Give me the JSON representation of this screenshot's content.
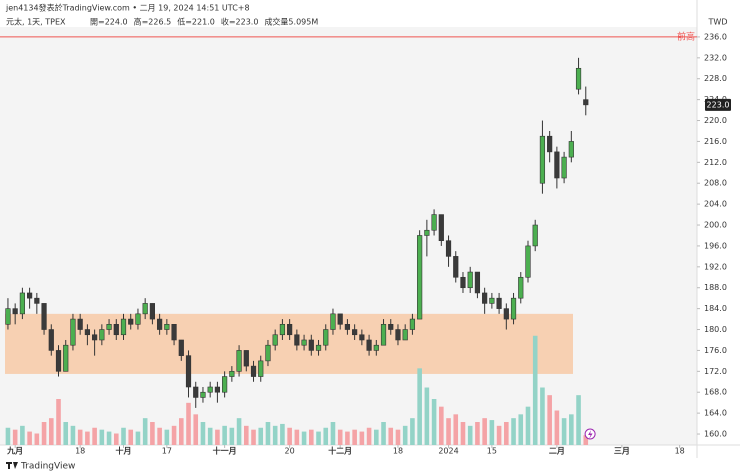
{
  "chart_data": {
    "type": "candlestick",
    "attribution": "jen4134發表於TradingView.com • 二月 19, 2024 14:51 UTC+8",
    "symbol": "元太, 1天, TPEX",
    "ohlc_labels": [
      "開=224.0",
      "高=226.5",
      "低=221.0",
      "收=223.0",
      "成交量5.095M"
    ],
    "currency": "TWD",
    "brand": "TradingView",
    "xlim": [
      -1.1,
      95.4
    ],
    "xticks": [
      {
        "value": 1,
        "label": "九月"
      },
      {
        "value": 10,
        "label": "18"
      },
      {
        "value": 16,
        "label": "十月"
      },
      {
        "value": 22,
        "label": "17"
      },
      {
        "value": 30,
        "label": "十一月"
      },
      {
        "value": 39,
        "label": "20"
      },
      {
        "value": 46,
        "label": "十二月"
      },
      {
        "value": 54,
        "label": "18"
      },
      {
        "value": 61,
        "label": "2024"
      },
      {
        "value": 67,
        "label": "15"
      },
      {
        "value": 76,
        "label": "二月"
      },
      {
        "value": 85,
        "label": "三月"
      },
      {
        "value": 93,
        "label": "18"
      }
    ],
    "ylim": [
      157.9,
      237.9
    ],
    "yticks": [
      {
        "value": 160,
        "label": "160.0"
      },
      {
        "value": 164,
        "label": "164.0"
      },
      {
        "value": 168,
        "label": "168.0"
      },
      {
        "value": 172,
        "label": "172.0"
      },
      {
        "value": 176,
        "label": "176.0"
      },
      {
        "value": 180,
        "label": "180.0"
      },
      {
        "value": 184,
        "label": "184.0"
      },
      {
        "value": 188,
        "label": "188.0"
      },
      {
        "value": 192,
        "label": "192.0"
      },
      {
        "value": 196,
        "label": "196.0"
      },
      {
        "value": 200,
        "label": "200.0"
      },
      {
        "value": 204,
        "label": "204.0"
      },
      {
        "value": 208,
        "label": "208.0"
      },
      {
        "value": 212,
        "label": "212.0"
      },
      {
        "value": 216,
        "label": "216.0"
      },
      {
        "value": 220,
        "label": "220.0"
      },
      {
        "value": 224,
        "label": "224.0"
      },
      {
        "value": 228,
        "label": "228.0"
      },
      {
        "value": 232,
        "label": "232.0"
      },
      {
        "value": 236,
        "label": "236.0"
      }
    ],
    "open": [
      181,
      184,
      183,
      187,
      186,
      185,
      180,
      176,
      172,
      177,
      182,
      180,
      179,
      178,
      180,
      181,
      179,
      182,
      181,
      183,
      185,
      182,
      180,
      181,
      178,
      175,
      169,
      167,
      168,
      169,
      168,
      171,
      172,
      176,
      173,
      171,
      174,
      177,
      179,
      181,
      179,
      177,
      178,
      176,
      177,
      180,
      183,
      181,
      180,
      179,
      178,
      176,
      177,
      181,
      180,
      178,
      180,
      182,
      198,
      199,
      202,
      197,
      194,
      190,
      188,
      191,
      187,
      185,
      186,
      184,
      182,
      186,
      190,
      196,
      208,
      217,
      214,
      209,
      213,
      226,
      224
    ],
    "high": [
      186,
      185,
      188,
      188,
      187,
      185,
      181,
      177,
      178,
      183,
      183,
      181,
      180,
      181,
      182,
      182,
      183,
      183,
      184,
      186,
      185,
      183,
      182,
      181,
      178,
      176,
      170,
      169,
      170,
      170,
      172,
      173,
      177,
      176,
      174,
      175,
      178,
      180,
      182,
      182,
      180,
      179,
      179,
      178,
      181,
      184,
      183,
      182,
      181,
      180,
      179,
      178,
      182,
      182,
      181,
      181,
      183,
      199,
      201,
      203,
      202,
      198,
      195,
      191,
      192,
      191,
      188,
      187,
      187,
      185,
      187,
      191,
      197,
      201,
      220,
      218,
      215,
      214,
      218,
      232,
      226.5
    ],
    "low": [
      180,
      181,
      182,
      184,
      183,
      179,
      175,
      171,
      172,
      176,
      179,
      177,
      175,
      177,
      179,
      178,
      178,
      180,
      180,
      182,
      181,
      179,
      179,
      177,
      174,
      167,
      165,
      166,
      167,
      166,
      167,
      170,
      171,
      172,
      170,
      170,
      173,
      176,
      178,
      178,
      176,
      176,
      175,
      175,
      176,
      179,
      180,
      179,
      178,
      177,
      175,
      175,
      177,
      179,
      177,
      178,
      179,
      182,
      194,
      198,
      196,
      192,
      189,
      187,
      187,
      186,
      183,
      184,
      183,
      180,
      181,
      185,
      189,
      195,
      206,
      212,
      207,
      208,
      212,
      225,
      221
    ],
    "close": [
      184,
      183,
      187,
      186,
      185,
      180,
      176,
      172,
      177,
      182,
      180,
      179,
      178,
      180,
      181,
      179,
      182,
      181,
      183,
      185,
      182,
      180,
      181,
      178,
      175,
      169,
      167,
      168,
      169,
      168,
      171,
      172,
      176,
      173,
      171,
      174,
      177,
      179,
      181,
      179,
      177,
      178,
      176,
      177,
      180,
      183,
      181,
      180,
      179,
      178,
      176,
      177,
      181,
      180,
      178,
      180,
      182,
      198,
      199,
      202,
      197,
      194,
      190,
      188,
      191,
      187,
      185,
      186,
      184,
      182,
      186,
      190,
      196,
      200,
      217,
      214,
      209,
      213,
      216,
      230,
      223
    ],
    "volume": [
      9,
      8,
      10,
      7,
      6,
      12,
      14,
      24,
      12,
      10,
      8,
      7,
      9,
      8,
      7,
      6,
      9,
      8,
      7,
      14,
      12,
      9,
      8,
      10,
      14,
      22,
      16,
      12,
      9,
      8,
      10,
      9,
      14,
      10,
      8,
      9,
      12,
      10,
      11,
      9,
      8,
      7,
      8,
      7,
      9,
      12,
      8,
      7,
      8,
      7,
      9,
      8,
      12,
      9,
      8,
      10,
      14,
      40,
      30,
      24,
      20,
      14,
      16,
      12,
      10,
      12,
      14,
      13,
      10,
      12,
      14,
      16,
      20,
      57,
      30,
      26,
      18,
      14,
      16,
      26,
      5.095
    ],
    "vlim": [
      0,
      60
    ],
    "up_color": "#4caf50",
    "down_color": "#3a3a3a",
    "up_volume_color": "#93d3c7",
    "down_volume_color": "#f4a3a6",
    "zone": {
      "low": 171.5,
      "high": 183,
      "color": "#f7c9a6"
    },
    "hline": {
      "value": 236,
      "label": "前高",
      "color": "#ef5350"
    },
    "price_tag": {
      "value": 223,
      "label": "223.0"
    }
  }
}
